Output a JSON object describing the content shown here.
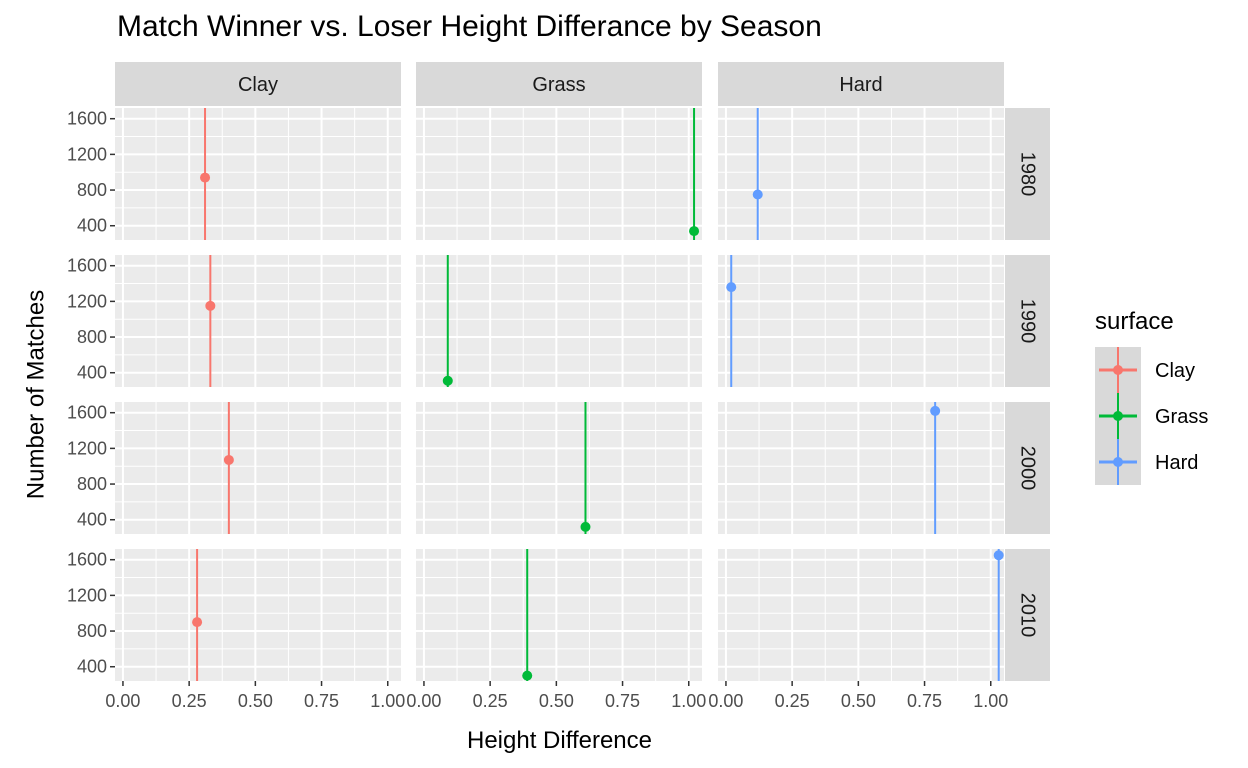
{
  "chart_data": {
    "type": "scatter",
    "title": "Match Winner vs. Loser Height Differance by Season",
    "xlabel": "Height Difference",
    "ylabel": "Number of Matches",
    "xlim": [
      -0.03,
      1.05
    ],
    "ylim": [
      240,
      1720
    ],
    "x_ticks": [
      "0.00",
      "0.25",
      "0.50",
      "0.75",
      "1.00"
    ],
    "x_tick_values": [
      0,
      0.25,
      0.5,
      0.75,
      1.0
    ],
    "y_ticks": [
      "400",
      "800",
      "1200",
      "1600"
    ],
    "y_tick_values": [
      400,
      800,
      1200,
      1600
    ],
    "columns": [
      "Clay",
      "Grass",
      "Hard"
    ],
    "rows": [
      "1980",
      "1990",
      "2000",
      "2010"
    ],
    "legend": {
      "title": "surface",
      "entries": [
        "Clay",
        "Grass",
        "Hard"
      ],
      "colors": [
        "#F8766D",
        "#00BA38",
        "#619CFF"
      ],
      "position": "right"
    },
    "grid": true,
    "points": [
      {
        "season": "1980",
        "surface": "Clay",
        "x": 0.31,
        "y": 940
      },
      {
        "season": "1980",
        "surface": "Grass",
        "x": 1.02,
        "y": 340
      },
      {
        "season": "1980",
        "surface": "Hard",
        "x": 0.12,
        "y": 750
      },
      {
        "season": "1990",
        "surface": "Clay",
        "x": 0.33,
        "y": 1150
      },
      {
        "season": "1990",
        "surface": "Grass",
        "x": 0.09,
        "y": 310
      },
      {
        "season": "1990",
        "surface": "Hard",
        "x": 0.02,
        "y": 1360
      },
      {
        "season": "2000",
        "surface": "Clay",
        "x": 0.4,
        "y": 1070
      },
      {
        "season": "2000",
        "surface": "Grass",
        "x": 0.61,
        "y": 320
      },
      {
        "season": "2000",
        "surface": "Hard",
        "x": 0.79,
        "y": 1620
      },
      {
        "season": "2010",
        "surface": "Clay",
        "x": 0.28,
        "y": 900
      },
      {
        "season": "2010",
        "surface": "Grass",
        "x": 0.39,
        "y": 300
      },
      {
        "season": "2010",
        "surface": "Hard",
        "x": 1.03,
        "y": 1650
      }
    ]
  }
}
